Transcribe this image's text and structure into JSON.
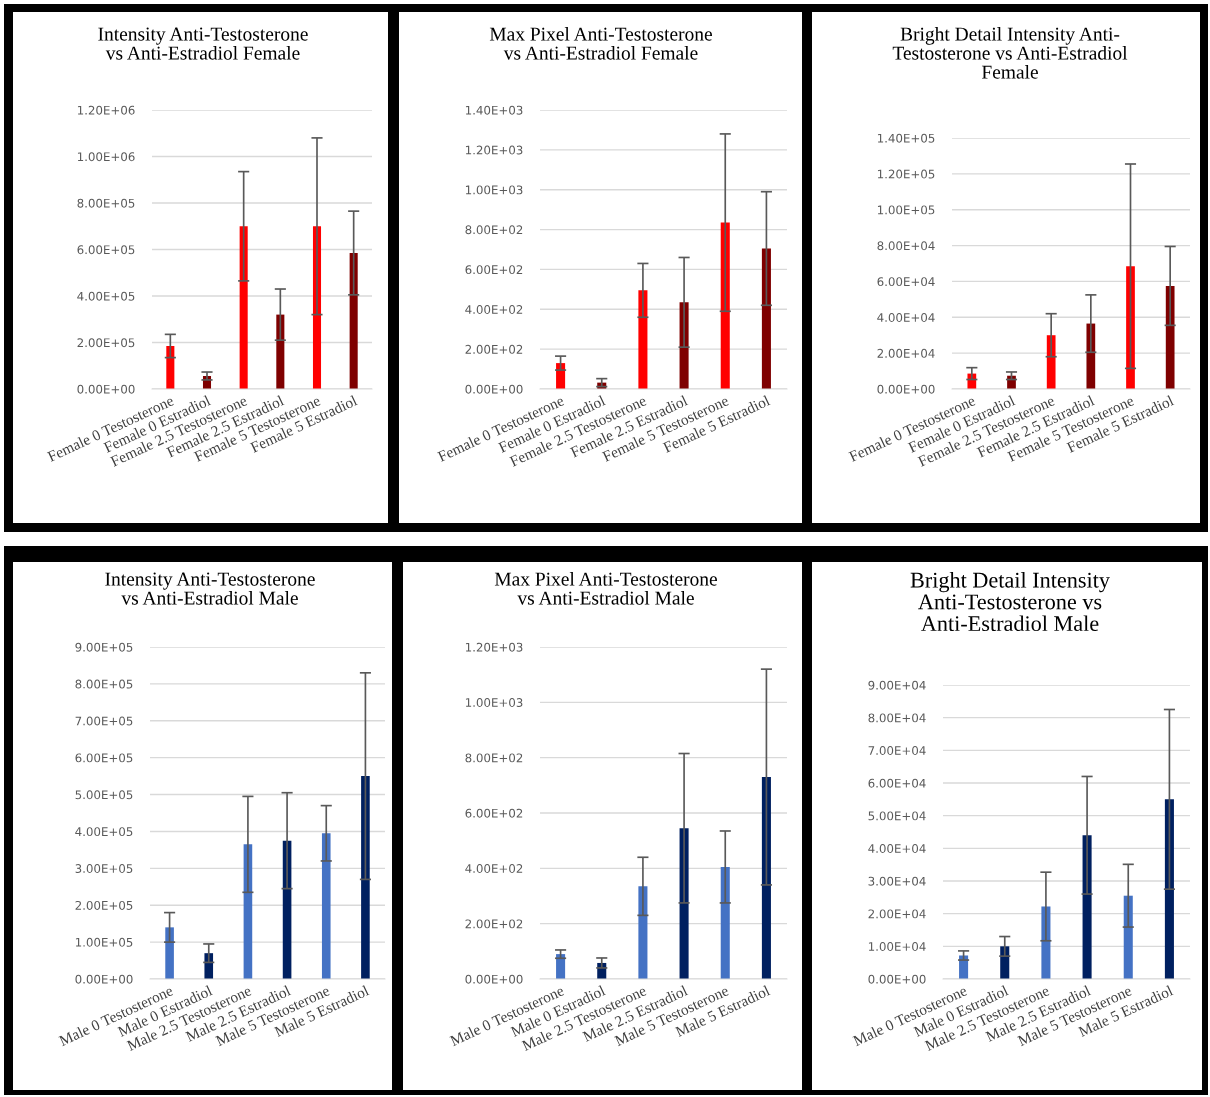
{
  "chart_data": [
    {
      "type": "bar",
      "title": "Intensity Anti-Testosterone\nvs Anti-Estradiol Female",
      "categories": [
        "Female 0 Testosterone",
        "Female 0 Estradiol",
        "Female 2.5 Testosterone",
        "Female 2.5 Estradiol",
        "Female 5 Testosterone",
        "Female 5 Estradiol"
      ],
      "colors": [
        "#ff0000",
        "#7f0000",
        "#ff0000",
        "#7f0000",
        "#ff0000",
        "#7f0000"
      ],
      "values": [
        185000,
        56000,
        700000,
        320000,
        700000,
        585000
      ],
      "errors": [
        50000,
        17000,
        235000,
        110000,
        380000,
        180000
      ],
      "ylim": [
        0,
        1200000
      ],
      "yticks": [
        {
          "value": 0,
          "label": "0.00E+00"
        },
        {
          "value": 200000,
          "label": "2.00E+05"
        },
        {
          "value": 400000,
          "label": "4.00E+05"
        },
        {
          "value": 600000,
          "label": "6.00E+05"
        },
        {
          "value": 800000,
          "label": "8.00E+05"
        },
        {
          "value": 1000000,
          "label": "1.00E+06"
        },
        {
          "value": 1200000,
          "label": "1.20E+06"
        }
      ],
      "grid": "y"
    },
    {
      "type": "bar",
      "title": "Max Pixel Anti-Testosterone\nvs Anti-Estradiol Female",
      "categories": [
        "Female 0 Testosterone",
        "Female 0 Estradiol",
        "Female 2.5 Testosterone",
        "Female 2.5 Estradiol",
        "Female 5 Testosterone",
        "Female 5 Estradiol"
      ],
      "colors": [
        "#ff0000",
        "#7f0000",
        "#ff0000",
        "#7f0000",
        "#ff0000",
        "#7f0000"
      ],
      "values": [
        130,
        32,
        495,
        435,
        835,
        705
      ],
      "errors": [
        35,
        20,
        135,
        225,
        445,
        285
      ],
      "ylim": [
        0,
        1400
      ],
      "yticks": [
        {
          "value": 0,
          "label": "0.00E+00"
        },
        {
          "value": 200,
          "label": "2.00E+02"
        },
        {
          "value": 400,
          "label": "4.00E+02"
        },
        {
          "value": 600,
          "label": "6.00E+02"
        },
        {
          "value": 800,
          "label": "8.00E+02"
        },
        {
          "value": 1000,
          "label": "1.00E+03"
        },
        {
          "value": 1200,
          "label": "1.20E+03"
        },
        {
          "value": 1400,
          "label": "1.40E+03"
        }
      ],
      "grid": "y"
    },
    {
      "type": "bar",
      "title": "Bright Detail Intensity Anti-\nTestosterone vs Anti-Estradiol\nFemale",
      "categories": [
        "Female 0 Testosterone",
        "Female 0 Estradiol",
        "Female 2.5 Testosterone",
        "Female 2.5 Estradiol",
        "Female 5 Testosterone",
        "Female 5 Estradiol"
      ],
      "colors": [
        "#ff0000",
        "#7f0000",
        "#ff0000",
        "#7f0000",
        "#ff0000",
        "#7f0000"
      ],
      "values": [
        8600,
        7400,
        30000,
        36500,
        68500,
        57500
      ],
      "errors": [
        3300,
        2100,
        12000,
        16000,
        57000,
        22000
      ],
      "ylim": [
        0,
        140000
      ],
      "yticks": [
        {
          "value": 0,
          "label": "0.00E+00"
        },
        {
          "value": 20000,
          "label": "2.00E+04"
        },
        {
          "value": 40000,
          "label": "4.00E+04"
        },
        {
          "value": 60000,
          "label": "6.00E+04"
        },
        {
          "value": 80000,
          "label": "8.00E+04"
        },
        {
          "value": 100000,
          "label": "1.00E+05"
        },
        {
          "value": 120000,
          "label": "1.20E+05"
        },
        {
          "value": 140000,
          "label": "1.40E+05"
        }
      ],
      "grid": "y"
    },
    {
      "type": "bar",
      "title": "Intensity Anti-Testosterone\nvs Anti-Estradiol Male",
      "categories": [
        "Male 0 Testosterone",
        "Male 0 Estradiol",
        "Male 2.5 Testosterone",
        "Male 2.5 Estradiol",
        "Male 5 Testosterone",
        "Male 5 Estradiol"
      ],
      "colors": [
        "#4472c4",
        "#002060",
        "#4472c4",
        "#002060",
        "#4472c4",
        "#002060"
      ],
      "values": [
        140000,
        70000,
        365000,
        375000,
        395000,
        550000
      ],
      "errors": [
        40000,
        25000,
        130000,
        130000,
        75000,
        280000
      ],
      "ylim": [
        0,
        900000
      ],
      "yticks": [
        {
          "value": 0,
          "label": "0.00E+00"
        },
        {
          "value": 100000,
          "label": "1.00E+05"
        },
        {
          "value": 200000,
          "label": "2.00E+05"
        },
        {
          "value": 300000,
          "label": "3.00E+05"
        },
        {
          "value": 400000,
          "label": "4.00E+05"
        },
        {
          "value": 500000,
          "label": "5.00E+05"
        },
        {
          "value": 600000,
          "label": "6.00E+05"
        },
        {
          "value": 700000,
          "label": "7.00E+05"
        },
        {
          "value": 800000,
          "label": "8.00E+05"
        },
        {
          "value": 900000,
          "label": "9.00E+05"
        }
      ],
      "grid": "y"
    },
    {
      "type": "bar",
      "title": "Max Pixel Anti-Testosterone\nvs Anti-Estradiol Male",
      "categories": [
        "Male 0 Testosterone",
        "Male 0 Estradiol",
        "Male 2.5 Testosterone",
        "Male 2.5 Estradiol",
        "Male 5 Testosterone",
        "Male 5 Estradiol"
      ],
      "colors": [
        "#4472c4",
        "#002060",
        "#4472c4",
        "#002060",
        "#4472c4",
        "#002060"
      ],
      "values": [
        90,
        58,
        335,
        545,
        405,
        730
      ],
      "errors": [
        15,
        18,
        105,
        270,
        130,
        390
      ],
      "ylim": [
        0,
        1200
      ],
      "yticks": [
        {
          "value": 0,
          "label": "0.00E+00"
        },
        {
          "value": 200,
          "label": "2.00E+02"
        },
        {
          "value": 400,
          "label": "4.00E+02"
        },
        {
          "value": 600,
          "label": "6.00E+02"
        },
        {
          "value": 800,
          "label": "8.00E+02"
        },
        {
          "value": 1000,
          "label": "1.00E+03"
        },
        {
          "value": 1200,
          "label": "1.20E+03"
        }
      ],
      "grid": "y"
    },
    {
      "type": "bar",
      "title": "Bright Detail Intensity\nAnti-Testosterone vs\nAnti-Estradiol Male",
      "categories": [
        "Male 0 Testosterone",
        "Male 0 Estradiol",
        "Male 2.5 Testosterone",
        "Male 2.5 Estradiol",
        "Male 5 Testosterone",
        "Male 5 Estradiol"
      ],
      "colors": [
        "#4472c4",
        "#002060",
        "#4472c4",
        "#002060",
        "#4472c4",
        "#002060"
      ],
      "values": [
        7200,
        10000,
        22200,
        44000,
        25500,
        55000
      ],
      "errors": [
        1400,
        3000,
        10500,
        18000,
        9600,
        27500
      ],
      "ylim": [
        0,
        90000
      ],
      "yticks": [
        {
          "value": 0,
          "label": "0.00E+00"
        },
        {
          "value": 10000,
          "label": "1.00E+04"
        },
        {
          "value": 20000,
          "label": "2.00E+04"
        },
        {
          "value": 30000,
          "label": "3.00E+04"
        },
        {
          "value": 40000,
          "label": "4.00E+04"
        },
        {
          "value": 50000,
          "label": "5.00E+04"
        },
        {
          "value": 60000,
          "label": "6.00E+04"
        },
        {
          "value": 70000,
          "label": "7.00E+04"
        },
        {
          "value": 80000,
          "label": "8.00E+04"
        },
        {
          "value": 90000,
          "label": "9.00E+04"
        }
      ],
      "grid": "y"
    }
  ]
}
